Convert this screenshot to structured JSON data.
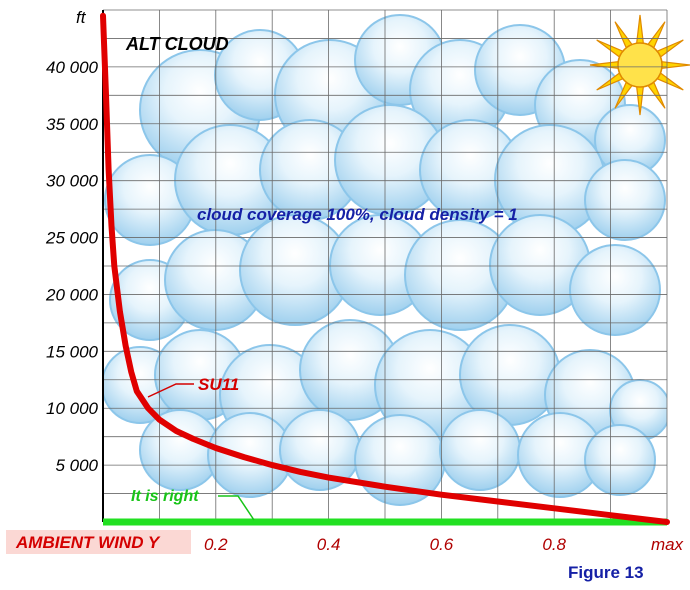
{
  "chart_data": {
    "type": "line",
    "title": "ALT CLOUD",
    "annotation": "cloud coverage 100%, cloud density = 1",
    "ylabel": "ft",
    "xlabel": "AMBIENT WIND Y",
    "figure_label": "Figure 13",
    "x_ticks": [
      "0.2",
      "0.4",
      "0.6",
      "0.8",
      "max"
    ],
    "y_ticks": [
      "5 000",
      "10 000",
      "15 000",
      "20 000",
      "25 000",
      "30 000",
      "35 000",
      "40 000"
    ],
    "xlim": [
      0,
      1
    ],
    "ylim": [
      0,
      45000
    ],
    "grid": true,
    "series": [
      {
        "name": "SU11",
        "color": "#e00000",
        "x": [
          0.0,
          0.005,
          0.01,
          0.015,
          0.02,
          0.03,
          0.04,
          0.05,
          0.06,
          0.08,
          0.1,
          0.13,
          0.16,
          0.2,
          0.25,
          0.3,
          0.35,
          0.4,
          0.5,
          0.6,
          0.7,
          0.8,
          0.9,
          0.95,
          1.0
        ],
        "y": [
          44500,
          38000,
          31000,
          26000,
          22500,
          18500,
          15500,
          13200,
          11500,
          10000,
          9000,
          8000,
          7300,
          6500,
          5700,
          5000,
          4400,
          3900,
          3100,
          2400,
          1800,
          1200,
          600,
          300,
          0
        ]
      },
      {
        "name": "It is right",
        "color": "#22e022",
        "x": [
          0,
          1
        ],
        "y": [
          0,
          0
        ]
      }
    ]
  }
}
